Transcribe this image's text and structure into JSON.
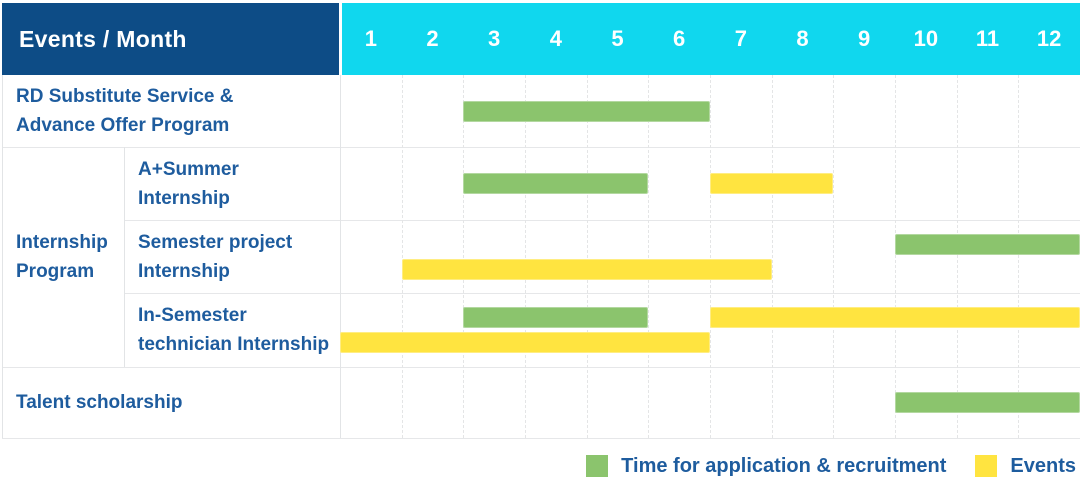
{
  "header": {
    "label": "Events / Month",
    "months": [
      "1",
      "2",
      "3",
      "4",
      "5",
      "6",
      "7",
      "8",
      "9",
      "10",
      "11",
      "12"
    ]
  },
  "colors": {
    "header_bg": "#0d4c86",
    "months_bg": "#10d7ee",
    "application_green": "#8bc46d",
    "events_yellow": "#ffe440",
    "label_text_blue": "#1e5c9e"
  },
  "legend": {
    "items": [
      {
        "label": "Time for application & recruitment",
        "color": "#8bc46d"
      },
      {
        "label": "Events",
        "color": "#ffe440"
      }
    ]
  },
  "chart_data": {
    "type": "bar",
    "subtype": "gantt-schedule",
    "title": "Events / Month",
    "x_ticks": [
      1,
      2,
      3,
      4,
      5,
      6,
      7,
      8,
      9,
      10,
      11,
      12
    ],
    "x_range": [
      1,
      12
    ],
    "legend_position": "bottom-right",
    "grid": true,
    "series_legend": [
      "Time for application & recruitment",
      "Events"
    ],
    "rows": [
      {
        "group": null,
        "label": "RD Substitute Service & Advance Offer Program",
        "label_lines": [
          "RD Substitute Service &",
          "Advance Offer Program"
        ],
        "bars": [
          {
            "series": "Time for application & recruitment",
            "start_month": 3,
            "end_month": 6,
            "lane": "center"
          }
        ]
      },
      {
        "group": "Internship Program",
        "group_lines": [
          "Internship",
          "Program"
        ],
        "label": "A+Summer Internship",
        "label_lines": [
          "A+Summer",
          "Internship"
        ],
        "bars": [
          {
            "series": "Time for application & recruitment",
            "start_month": 3,
            "end_month": 5,
            "lane": "center"
          },
          {
            "series": "Events",
            "start_month": 7,
            "end_month": 8,
            "lane": "center"
          }
        ]
      },
      {
        "group": "Internship Program",
        "label": "Semester project Internship",
        "label_lines": [
          "Semester project",
          "Internship"
        ],
        "bars": [
          {
            "series": "Time for application & recruitment",
            "start_month": 10,
            "end_month": 12,
            "lane": "top"
          },
          {
            "series": "Events",
            "start_month": 2,
            "end_month": 7,
            "lane": "bottom"
          }
        ]
      },
      {
        "group": "Internship Program",
        "label": "In-Semester technician Internship",
        "label_lines": [
          "In-Semester",
          "technician Internship"
        ],
        "bars": [
          {
            "series": "Time for application & recruitment",
            "start_month": 3,
            "end_month": 5,
            "lane": "top"
          },
          {
            "series": "Events",
            "start_month": 7,
            "end_month": 12,
            "lane": "top"
          },
          {
            "series": "Events",
            "start_month": 1,
            "end_month": 6,
            "lane": "bottom"
          }
        ]
      },
      {
        "group": null,
        "label": "Talent scholarship",
        "label_lines": [
          "Talent scholarship"
        ],
        "bars": [
          {
            "series": "Time for application & recruitment",
            "start_month": 10,
            "end_month": 12,
            "lane": "center"
          }
        ]
      }
    ]
  }
}
